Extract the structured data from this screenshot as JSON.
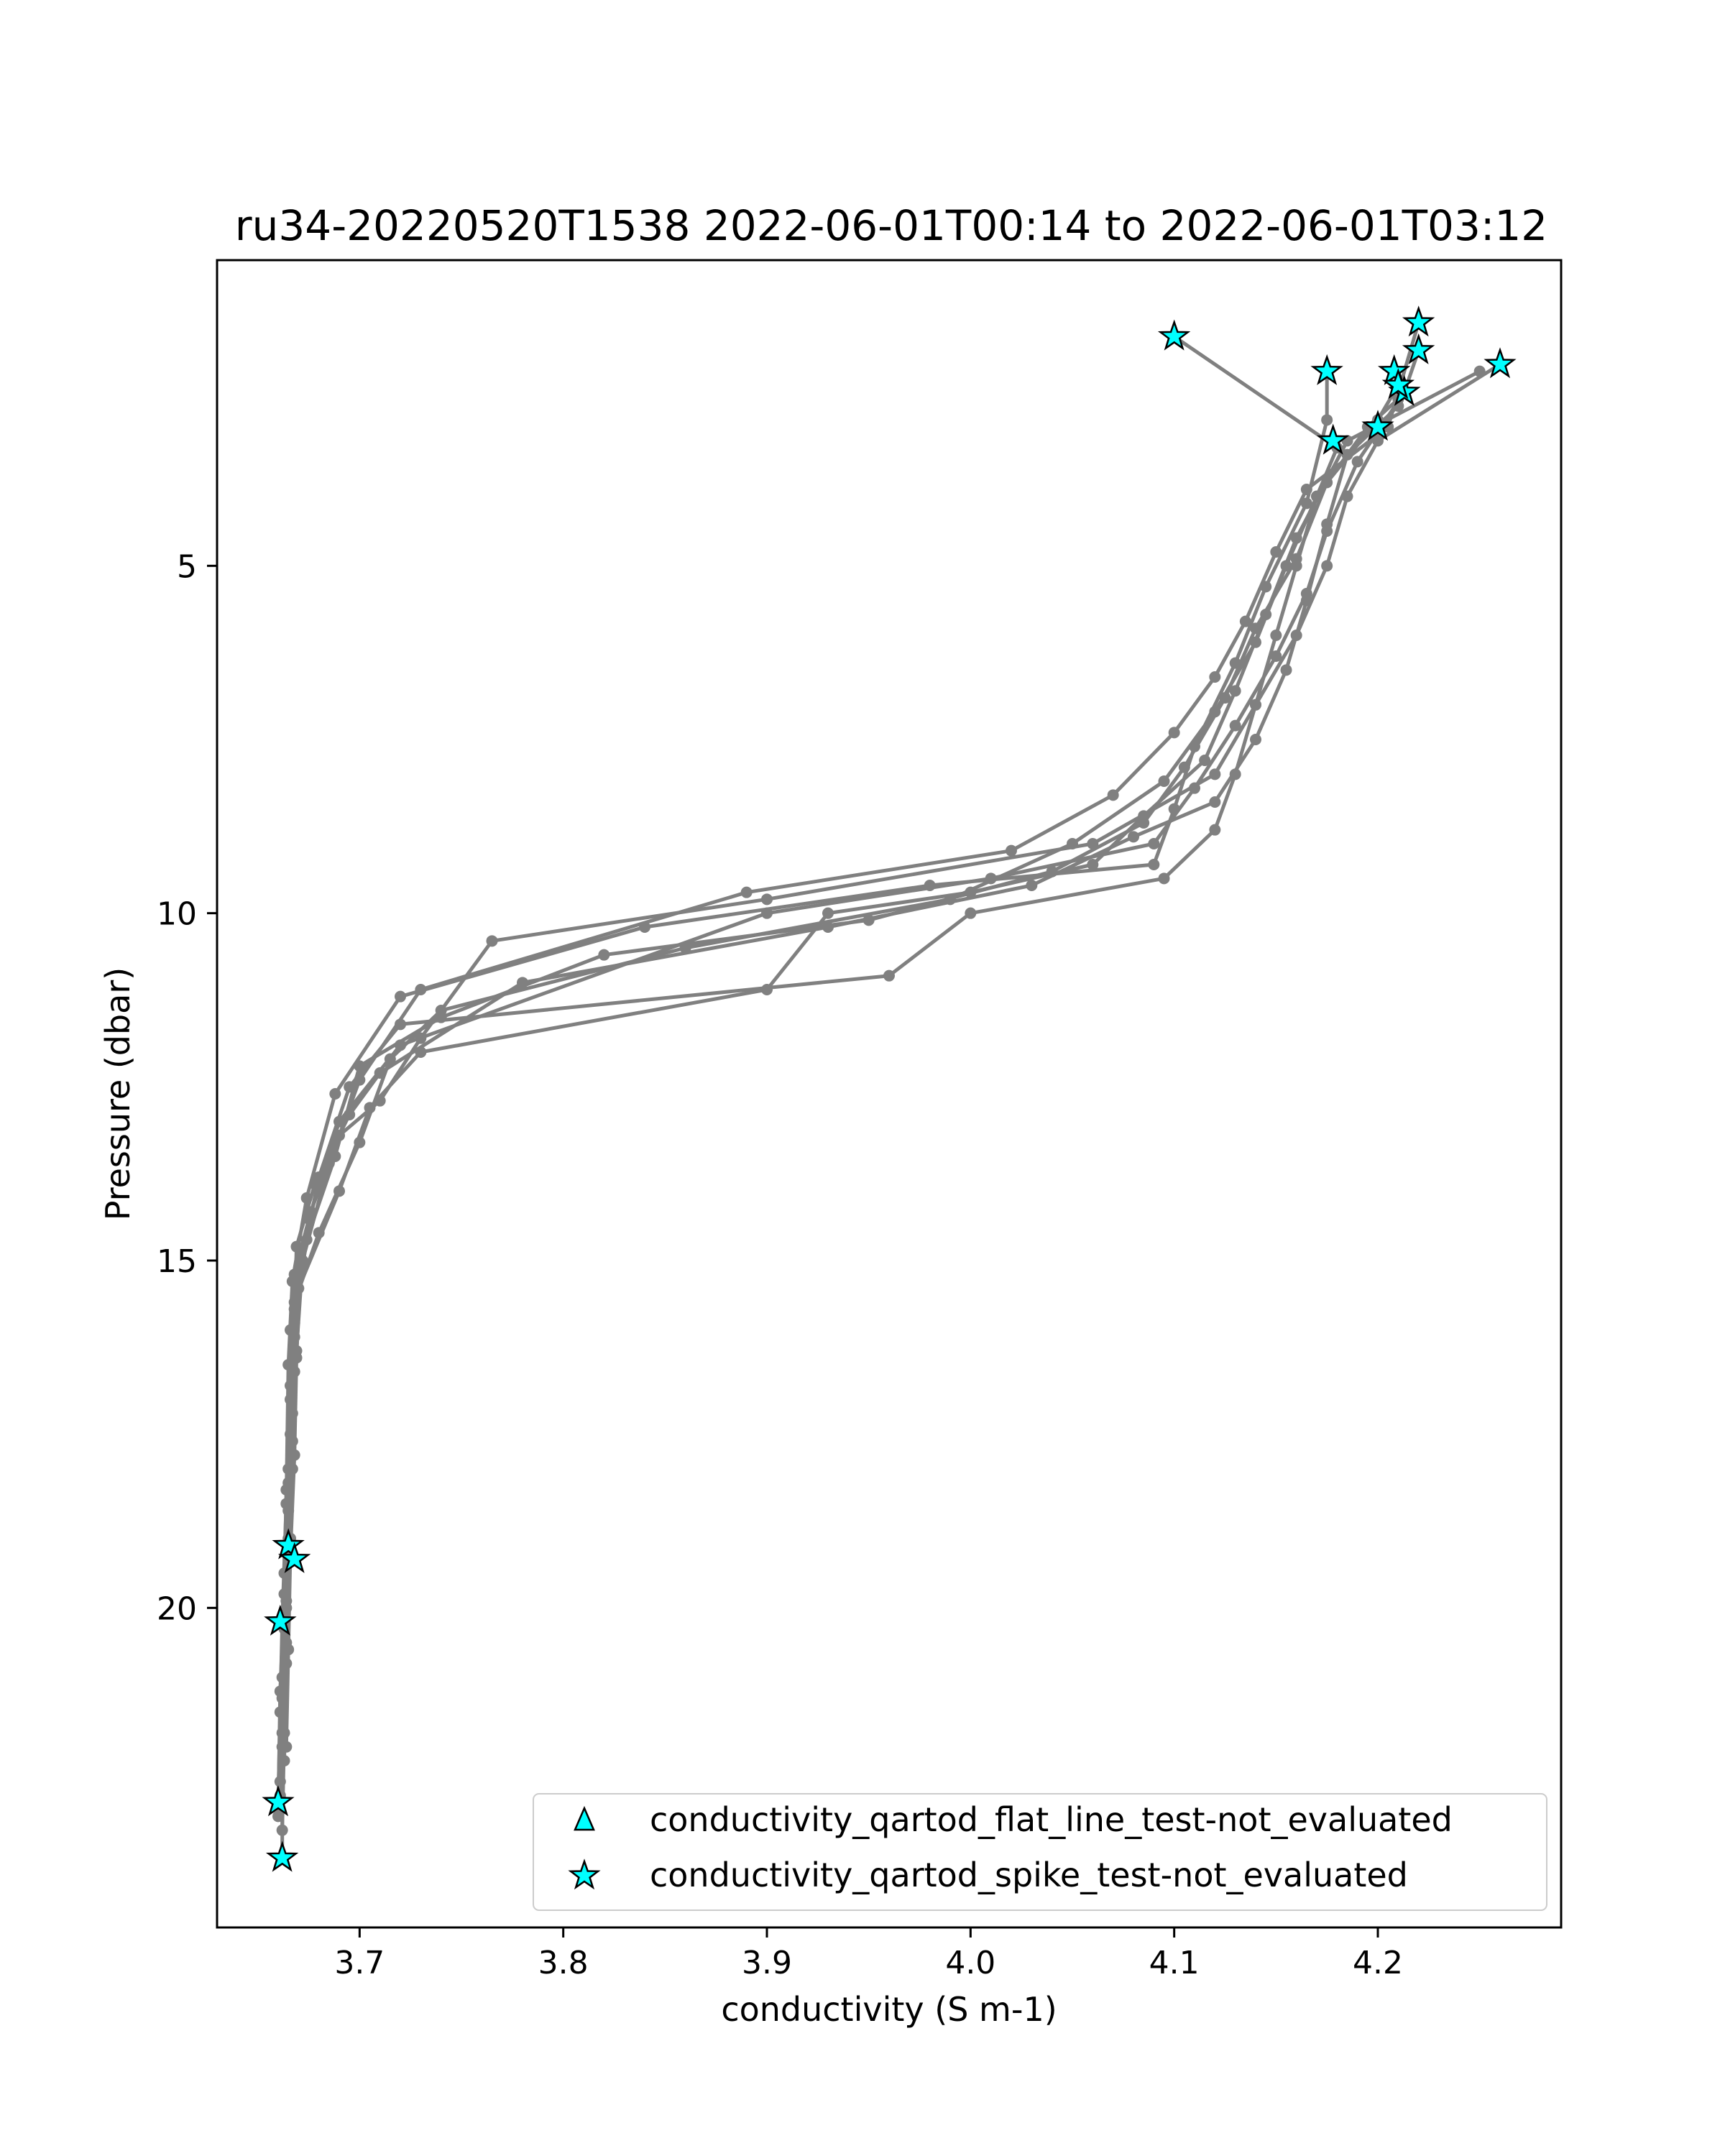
{
  "chart_data": {
    "type": "line",
    "title": "ru34-20220520T1538 2022-06-01T00:14 to 2022-06-01T03:12",
    "xlabel": "conductivity (S m-1)",
    "ylabel": "Pressure (dbar)",
    "xlim": [
      3.63,
      4.29
    ],
    "ylim": [
      24.6,
      0.6
    ],
    "y_inverted": true,
    "grid": false,
    "legend_position": "lower right",
    "xticks": [
      {
        "value": 3.7,
        "label": "3.7"
      },
      {
        "value": 3.8,
        "label": "3.8"
      },
      {
        "value": 3.9,
        "label": "3.9"
      },
      {
        "value": 4.0,
        "label": "4.0"
      },
      {
        "value": 4.1,
        "label": "4.1"
      },
      {
        "value": 4.2,
        "label": "4.2"
      }
    ],
    "yticks": [
      {
        "value": 5,
        "label": "5"
      },
      {
        "value": 10,
        "label": "10"
      },
      {
        "value": 15,
        "label": "15"
      },
      {
        "value": 20,
        "label": "20"
      }
    ],
    "line_color": "#808080",
    "marker_color": "#00ffff",
    "profiles": [
      {
        "points": [
          [
            3.662,
            23.6
          ],
          [
            3.662,
            22.0
          ],
          [
            3.664,
            20.0
          ],
          [
            3.665,
            18.0
          ],
          [
            3.666,
            16.0
          ],
          [
            3.668,
            15.2
          ],
          [
            3.676,
            14.3
          ],
          [
            3.69,
            13.2
          ],
          [
            3.71,
            12.7
          ],
          [
            3.73,
            11.8
          ],
          [
            3.765,
            10.4
          ],
          [
            3.9,
            9.8
          ],
          [
            4.06,
            9.0
          ],
          [
            4.12,
            8.0
          ],
          [
            4.14,
            7.0
          ],
          [
            4.15,
            6.0
          ],
          [
            4.16,
            5.0
          ],
          [
            4.17,
            4.0
          ],
          [
            4.18,
            3.3
          ],
          [
            4.1,
            1.7
          ]
        ]
      },
      {
        "points": [
          [
            3.66,
            22.8
          ],
          [
            3.661,
            21.5
          ],
          [
            3.662,
            20.2
          ],
          [
            3.664,
            18.5
          ],
          [
            3.665,
            16.5
          ],
          [
            3.667,
            15.3
          ],
          [
            3.674,
            14.1
          ],
          [
            3.688,
            12.6
          ],
          [
            3.72,
            11.2
          ],
          [
            3.84,
            10.2
          ],
          [
            3.98,
            9.6
          ],
          [
            4.09,
            9.3
          ],
          [
            4.1,
            8.5
          ],
          [
            4.11,
            7.6
          ],
          [
            4.13,
            6.4
          ],
          [
            4.145,
            5.3
          ],
          [
            4.165,
            4.1
          ],
          [
            4.175,
            2.9
          ],
          [
            4.175,
            2.2
          ]
        ]
      },
      {
        "points": [
          [
            3.661,
            22.5
          ],
          [
            3.662,
            21.0
          ],
          [
            3.663,
            19.5
          ],
          [
            3.665,
            18.2
          ],
          [
            3.666,
            16.8
          ],
          [
            3.668,
            15.6
          ],
          [
            3.68,
            14.6
          ],
          [
            3.7,
            13.3
          ],
          [
            3.715,
            12.1
          ],
          [
            3.74,
            11.4
          ],
          [
            3.86,
            10.5
          ],
          [
            3.99,
            9.8
          ],
          [
            4.05,
            9.0
          ],
          [
            4.095,
            8.1
          ],
          [
            4.12,
            7.1
          ],
          [
            4.14,
            6.1
          ],
          [
            4.155,
            5.0
          ],
          [
            4.17,
            4.0
          ],
          [
            4.195,
            3.0
          ],
          [
            4.21,
            2.6
          ]
        ]
      },
      {
        "points": [
          [
            3.662,
            23.2
          ],
          [
            3.663,
            21.8
          ],
          [
            3.664,
            20.5
          ],
          [
            3.666,
            19.0
          ],
          [
            3.667,
            17.6
          ],
          [
            3.669,
            16.3
          ],
          [
            3.672,
            15.0
          ],
          [
            3.685,
            13.6
          ],
          [
            3.7,
            12.4
          ],
          [
            3.73,
            11.1
          ],
          [
            3.89,
            9.7
          ],
          [
            4.02,
            9.1
          ],
          [
            4.07,
            8.3
          ],
          [
            4.1,
            7.4
          ],
          [
            4.12,
            6.6
          ],
          [
            4.135,
            5.8
          ],
          [
            4.15,
            4.8
          ],
          [
            4.165,
            3.9
          ],
          [
            4.205,
            3.0
          ],
          [
            4.22,
            1.5
          ]
        ]
      },
      {
        "points": [
          [
            3.66,
            23.0
          ],
          [
            3.661,
            21.2
          ],
          [
            3.663,
            19.8
          ],
          [
            3.664,
            18.3
          ],
          [
            3.666,
            17.0
          ],
          [
            3.668,
            15.7
          ],
          [
            3.675,
            14.4
          ],
          [
            3.69,
            13.0
          ],
          [
            3.72,
            11.9
          ],
          [
            3.9,
            10.0
          ],
          [
            4.01,
            9.5
          ],
          [
            4.09,
            9.0
          ],
          [
            4.11,
            8.2
          ],
          [
            4.13,
            7.3
          ],
          [
            4.15,
            6.3
          ],
          [
            4.165,
            5.4
          ],
          [
            4.175,
            4.5
          ],
          [
            4.19,
            3.5
          ],
          [
            4.213,
            2.5
          ],
          [
            4.22,
            1.9
          ]
        ]
      },
      {
        "points": [
          [
            3.663,
            22.2
          ],
          [
            3.664,
            20.8
          ],
          [
            3.665,
            19.3
          ],
          [
            3.667,
            18.0
          ],
          [
            3.668,
            16.6
          ],
          [
            3.67,
            15.4
          ],
          [
            3.69,
            14.0
          ],
          [
            3.705,
            12.8
          ],
          [
            3.73,
            12.0
          ],
          [
            3.9,
            11.1
          ],
          [
            3.93,
            10.0
          ],
          [
            4.0,
            9.7
          ],
          [
            4.06,
            9.3
          ],
          [
            4.085,
            8.6
          ],
          [
            4.115,
            7.8
          ],
          [
            4.13,
            6.8
          ],
          [
            4.145,
            5.7
          ],
          [
            4.16,
            4.6
          ],
          [
            4.185,
            3.2
          ],
          [
            4.25,
            2.2
          ]
        ]
      },
      {
        "points": [
          [
            3.664,
            22.0
          ],
          [
            3.665,
            20.6
          ],
          [
            3.666,
            19.2
          ],
          [
            3.668,
            17.8
          ],
          [
            3.669,
            16.4
          ],
          [
            3.671,
            15.1
          ],
          [
            3.68,
            13.8
          ],
          [
            3.695,
            12.5
          ],
          [
            3.72,
            11.6
          ],
          [
            3.96,
            10.9
          ],
          [
            4.0,
            10.0
          ],
          [
            4.095,
            9.5
          ],
          [
            4.12,
            8.8
          ],
          [
            4.13,
            8.0
          ],
          [
            4.14,
            7.0
          ],
          [
            4.16,
            6.0
          ],
          [
            4.175,
            5.0
          ],
          [
            4.185,
            4.0
          ],
          [
            4.2,
            3.2
          ],
          [
            4.26,
            2.1
          ]
        ]
      },
      {
        "points": [
          [
            3.662,
            21.8
          ],
          [
            3.663,
            20.3
          ],
          [
            3.665,
            19.0
          ],
          [
            3.666,
            17.5
          ],
          [
            3.668,
            16.1
          ],
          [
            3.669,
            14.8
          ],
          [
            3.678,
            13.9
          ],
          [
            3.695,
            12.9
          ],
          [
            3.71,
            12.3
          ],
          [
            3.78,
            11.0
          ],
          [
            3.93,
            10.2
          ],
          [
            4.03,
            9.6
          ],
          [
            4.08,
            8.9
          ],
          [
            4.12,
            8.4
          ],
          [
            4.14,
            7.5
          ],
          [
            4.155,
            6.5
          ],
          [
            4.165,
            5.5
          ],
          [
            4.175,
            4.4
          ],
          [
            4.185,
            3.4
          ],
          [
            4.21,
            2.7
          ]
        ]
      },
      {
        "points": [
          [
            3.661,
            22.7
          ],
          [
            3.662,
            21.3
          ],
          [
            3.664,
            19.9
          ],
          [
            3.665,
            18.6
          ],
          [
            3.667,
            17.2
          ],
          [
            3.668,
            15.9
          ],
          [
            3.674,
            14.7
          ],
          [
            3.688,
            13.5
          ],
          [
            3.7,
            12.2
          ],
          [
            3.74,
            11.5
          ],
          [
            3.82,
            10.6
          ],
          [
            3.95,
            10.1
          ],
          [
            4.04,
            9.4
          ],
          [
            4.085,
            8.7
          ],
          [
            4.105,
            7.9
          ],
          [
            4.125,
            6.9
          ],
          [
            4.14,
            5.9
          ],
          [
            4.16,
            4.9
          ],
          [
            4.175,
            3.8
          ],
          [
            4.2,
            2.9
          ],
          [
            4.21,
            2.4
          ]
        ]
      }
    ],
    "flagged_series": [
      {
        "name": "conductivity_qartod_flat_line_test-not_evaluated",
        "marker": "triangle",
        "points": []
      },
      {
        "name": "conductivity_qartod_spike_test-not_evaluated",
        "marker": "star",
        "points": [
          [
            4.1,
            1.7
          ],
          [
            4.175,
            2.2
          ],
          [
            4.22,
            1.5
          ],
          [
            4.22,
            1.9
          ],
          [
            4.208,
            2.2
          ],
          [
            4.26,
            2.1
          ],
          [
            4.213,
            2.5
          ],
          [
            4.21,
            2.4
          ],
          [
            4.2,
            3.0
          ],
          [
            4.178,
            3.2
          ],
          [
            3.665,
            19.1
          ],
          [
            3.668,
            19.3
          ],
          [
            3.661,
            20.2
          ],
          [
            3.66,
            22.8
          ],
          [
            3.662,
            23.6
          ]
        ]
      }
    ]
  }
}
